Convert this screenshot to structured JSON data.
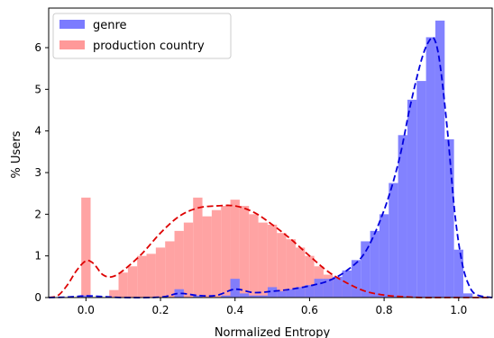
{
  "chart_data": {
    "type": "bar",
    "xlabel": "Normalized Entropy",
    "ylabel": "% Users",
    "xlim": [
      -0.1,
      1.09
    ],
    "ylim": [
      0,
      6.95
    ],
    "xticks": [
      "0.0",
      "0.2",
      "0.4",
      "0.6",
      "0.8",
      "1.0"
    ],
    "xtick_values": [
      0.0,
      0.2,
      0.4,
      0.6,
      0.8,
      1.0
    ],
    "yticks": [
      "0",
      "1",
      "2",
      "3",
      "4",
      "5",
      "6"
    ],
    "ytick_values": [
      0,
      1,
      2,
      3,
      4,
      5,
      6
    ],
    "legend_position": "top-left",
    "grid": false,
    "bin_width": 0.025,
    "series": [
      {
        "name": "genre",
        "color": "#7b7bff",
        "kde_color": "#0000dd",
        "bins": [
          [
            0.0,
            0.05
          ],
          [
            0.25,
            0.2
          ],
          [
            0.3,
            0.05
          ],
          [
            0.375,
            0.05
          ],
          [
            0.4,
            0.45
          ],
          [
            0.425,
            0.1
          ],
          [
            0.45,
            0.05
          ],
          [
            0.475,
            0.05
          ],
          [
            0.5,
            0.25
          ],
          [
            0.525,
            0.15
          ],
          [
            0.55,
            0.2
          ],
          [
            0.575,
            0.25
          ],
          [
            0.6,
            0.3
          ],
          [
            0.625,
            0.45
          ],
          [
            0.65,
            0.45
          ],
          [
            0.675,
            0.5
          ],
          [
            0.7,
            0.65
          ],
          [
            0.725,
            0.9
          ],
          [
            0.75,
            1.35
          ],
          [
            0.775,
            1.6
          ],
          [
            0.8,
            2.0
          ],
          [
            0.825,
            2.75
          ],
          [
            0.85,
            3.9
          ],
          [
            0.875,
            4.75
          ],
          [
            0.9,
            5.2
          ],
          [
            0.925,
            6.25
          ],
          [
            0.95,
            6.65
          ],
          [
            0.975,
            3.8
          ],
          [
            1.0,
            1.15
          ],
          [
            1.025,
            0.1
          ]
        ],
        "kde": [
          [
            -0.1,
            0.0
          ],
          [
            -0.05,
            0.01
          ],
          [
            0.0,
            0.04
          ],
          [
            0.05,
            0.02
          ],
          [
            0.1,
            0.0
          ],
          [
            0.2,
            0.01
          ],
          [
            0.25,
            0.1
          ],
          [
            0.3,
            0.05
          ],
          [
            0.35,
            0.05
          ],
          [
            0.4,
            0.2
          ],
          [
            0.45,
            0.12
          ],
          [
            0.5,
            0.15
          ],
          [
            0.55,
            0.2
          ],
          [
            0.6,
            0.28
          ],
          [
            0.65,
            0.4
          ],
          [
            0.7,
            0.65
          ],
          [
            0.75,
            1.1
          ],
          [
            0.8,
            2.1
          ],
          [
            0.84,
            3.3
          ],
          [
            0.87,
            4.6
          ],
          [
            0.9,
            5.7
          ],
          [
            0.92,
            6.15
          ],
          [
            0.935,
            6.2
          ],
          [
            0.95,
            5.6
          ],
          [
            0.97,
            4.0
          ],
          [
            0.99,
            2.0
          ],
          [
            1.01,
            0.8
          ],
          [
            1.03,
            0.25
          ],
          [
            1.05,
            0.06
          ],
          [
            1.09,
            0.0
          ]
        ]
      },
      {
        "name": "production country",
        "color": "#ff9999",
        "kde_color": "#dd0000",
        "bins": [
          [
            0.0,
            2.4
          ],
          [
            0.075,
            0.18
          ],
          [
            0.1,
            0.6
          ],
          [
            0.125,
            0.75
          ],
          [
            0.15,
            1.0
          ],
          [
            0.175,
            1.05
          ],
          [
            0.2,
            1.2
          ],
          [
            0.225,
            1.35
          ],
          [
            0.25,
            1.6
          ],
          [
            0.275,
            1.8
          ],
          [
            0.3,
            2.4
          ],
          [
            0.325,
            1.95
          ],
          [
            0.35,
            2.1
          ],
          [
            0.375,
            2.2
          ],
          [
            0.4,
            2.35
          ],
          [
            0.425,
            2.2
          ],
          [
            0.45,
            2.0
          ],
          [
            0.475,
            1.8
          ],
          [
            0.5,
            1.75
          ],
          [
            0.525,
            1.55
          ],
          [
            0.55,
            1.4
          ],
          [
            0.575,
            1.2
          ],
          [
            0.6,
            1.0
          ],
          [
            0.625,
            0.75
          ],
          [
            0.65,
            0.55
          ],
          [
            0.675,
            0.45
          ],
          [
            0.7,
            0.3
          ],
          [
            0.725,
            0.2
          ],
          [
            0.75,
            0.12
          ],
          [
            0.775,
            0.08
          ],
          [
            0.8,
            0.05
          ],
          [
            0.825,
            0.03
          ],
          [
            0.85,
            0.02
          ],
          [
            0.875,
            0.01
          ]
        ],
        "kde": [
          [
            -0.1,
            0.0
          ],
          [
            -0.075,
            0.05
          ],
          [
            -0.05,
            0.3
          ],
          [
            -0.025,
            0.65
          ],
          [
            0.0,
            0.88
          ],
          [
            0.02,
            0.82
          ],
          [
            0.045,
            0.55
          ],
          [
            0.07,
            0.5
          ],
          [
            0.1,
            0.65
          ],
          [
            0.15,
            1.05
          ],
          [
            0.2,
            1.55
          ],
          [
            0.25,
            1.95
          ],
          [
            0.3,
            2.15
          ],
          [
            0.35,
            2.2
          ],
          [
            0.4,
            2.2
          ],
          [
            0.45,
            2.05
          ],
          [
            0.5,
            1.75
          ],
          [
            0.55,
            1.4
          ],
          [
            0.6,
            1.0
          ],
          [
            0.65,
            0.62
          ],
          [
            0.7,
            0.35
          ],
          [
            0.75,
            0.15
          ],
          [
            0.8,
            0.06
          ],
          [
            0.85,
            0.02
          ],
          [
            0.9,
            0.0
          ],
          [
            0.95,
            0.0
          ],
          [
            1.0,
            0.0
          ],
          [
            1.09,
            0.0
          ]
        ]
      }
    ]
  }
}
